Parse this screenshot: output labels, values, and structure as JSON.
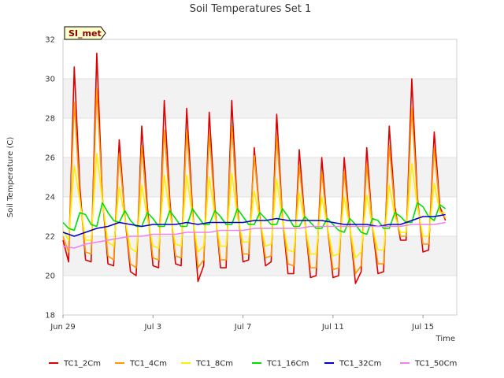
{
  "chart_data": {
    "type": "line",
    "title": "Soil Temperatures Set 1",
    "xlabel": "Time",
    "ylabel": "Soil Temperature (C)",
    "badge": "SI_met",
    "ylim": [
      18,
      32
    ],
    "xlim": [
      "Jun 29",
      "Jul 17 12:00"
    ],
    "yticks": [
      18,
      20,
      22,
      24,
      26,
      28,
      30,
      32
    ],
    "xticks": [
      {
        "label": "Jun 29",
        "day": 0
      },
      {
        "label": "Jul 3",
        "day": 4
      },
      {
        "label": "Jul 7",
        "day": 8
      },
      {
        "label": "Jul 11",
        "day": 12
      },
      {
        "label": "Jul 15",
        "day": 16
      }
    ],
    "grid": "horizontal bands",
    "legend_position": "bottom",
    "series": [
      {
        "name": "TC1_2Cm",
        "color": "#dd0000",
        "x": [
          0.0,
          0.25,
          0.5,
          0.75,
          1.0,
          1.25,
          1.5,
          1.75,
          2.0,
          2.25,
          2.5,
          2.75,
          3.0,
          3.25,
          3.5,
          3.75,
          4.0,
          4.25,
          4.5,
          4.75,
          5.0,
          5.25,
          5.5,
          5.75,
          6.0,
          6.25,
          6.5,
          6.75,
          7.0,
          7.25,
          7.5,
          7.75,
          8.0,
          8.25,
          8.5,
          8.75,
          9.0,
          9.25,
          9.5,
          9.75,
          10.0,
          10.25,
          10.5,
          10.75,
          11.0,
          11.25,
          11.5,
          11.75,
          12.0,
          12.25,
          12.5,
          12.75,
          13.0,
          13.25,
          13.5,
          13.75,
          14.0,
          14.25,
          14.5,
          14.75,
          15.0,
          15.25,
          15.5,
          15.75,
          16.0,
          16.25,
          16.5,
          16.75,
          17.0
        ],
        "y": [
          21.8,
          20.7,
          30.6,
          24.5,
          20.8,
          20.7,
          31.3,
          24.0,
          20.6,
          20.5,
          26.9,
          23.0,
          20.2,
          20.0,
          27.6,
          23.5,
          20.5,
          20.4,
          28.9,
          23.8,
          20.6,
          20.5,
          28.5,
          23.5,
          19.7,
          20.5,
          28.3,
          23.5,
          20.4,
          20.4,
          28.9,
          23.5,
          20.7,
          20.8,
          26.5,
          23.0,
          20.5,
          20.7,
          28.2,
          23.0,
          20.1,
          20.1,
          26.4,
          22.8,
          19.9,
          20.0,
          26.0,
          22.5,
          19.9,
          20.0,
          26.0,
          22.5,
          19.6,
          20.2,
          26.5,
          22.5,
          20.1,
          20.2,
          27.6,
          23.5,
          21.8,
          21.8,
          30.0,
          24.0,
          21.2,
          21.3,
          27.3,
          23.5,
          22.8
        ]
      },
      {
        "name": "TC1_4Cm",
        "color": "#ff9900",
        "x": [
          0.0,
          0.25,
          0.5,
          0.75,
          1.0,
          1.25,
          1.5,
          1.75,
          2.0,
          2.25,
          2.5,
          2.75,
          3.0,
          3.25,
          3.5,
          3.75,
          4.0,
          4.25,
          4.5,
          4.75,
          5.0,
          5.25,
          5.5,
          5.75,
          6.0,
          6.25,
          6.5,
          6.75,
          7.0,
          7.25,
          7.5,
          7.75,
          8.0,
          8.25,
          8.5,
          8.75,
          9.0,
          9.25,
          9.5,
          9.75,
          10.0,
          10.25,
          10.5,
          10.75,
          11.0,
          11.25,
          11.5,
          11.75,
          12.0,
          12.25,
          12.5,
          12.75,
          13.0,
          13.25,
          13.5,
          13.75,
          14.0,
          14.25,
          14.5,
          14.75,
          15.0,
          15.25,
          15.5,
          15.75,
          16.0,
          16.25,
          16.5,
          16.75,
          17.0
        ],
        "y": [
          22.0,
          21.2,
          28.8,
          24.0,
          21.2,
          21.1,
          29.5,
          24.0,
          21.0,
          20.8,
          26.2,
          23.0,
          20.6,
          20.4,
          26.6,
          23.2,
          20.9,
          20.8,
          27.4,
          23.5,
          21.0,
          20.9,
          27.4,
          23.3,
          20.4,
          20.8,
          27.2,
          23.3,
          20.8,
          20.8,
          27.6,
          23.3,
          21.1,
          21.1,
          26.1,
          22.9,
          20.9,
          21.0,
          27.1,
          23.0,
          20.6,
          20.5,
          25.6,
          22.7,
          20.4,
          20.4,
          25.3,
          22.5,
          20.3,
          20.4,
          25.3,
          22.4,
          20.1,
          20.5,
          25.7,
          22.5,
          20.6,
          20.6,
          26.6,
          23.3,
          22.0,
          22.0,
          28.5,
          23.8,
          21.6,
          21.6,
          26.5,
          23.3,
          22.9
        ]
      },
      {
        "name": "TC1_8Cm",
        "color": "#ffee00",
        "x": [
          0.0,
          0.25,
          0.5,
          0.75,
          1.0,
          1.25,
          1.5,
          1.75,
          2.0,
          2.25,
          2.5,
          2.75,
          3.0,
          3.25,
          3.5,
          3.75,
          4.0,
          4.25,
          4.5,
          4.75,
          5.0,
          5.25,
          5.5,
          5.75,
          6.0,
          6.25,
          6.5,
          6.75,
          7.0,
          7.25,
          7.5,
          7.75,
          8.0,
          8.25,
          8.5,
          8.75,
          9.0,
          9.25,
          9.5,
          9.75,
          10.0,
          10.25,
          10.5,
          10.75,
          11.0,
          11.25,
          11.5,
          11.75,
          12.0,
          12.25,
          12.5,
          12.75,
          13.0,
          13.25,
          13.5,
          13.75,
          14.0,
          14.25,
          14.5,
          14.75,
          15.0,
          15.25,
          15.5,
          15.75,
          16.0,
          16.25,
          16.5,
          16.75,
          17.0
        ],
        "y": [
          22.3,
          21.8,
          25.6,
          23.8,
          21.8,
          21.8,
          26.2,
          23.8,
          21.7,
          21.5,
          24.5,
          22.9,
          21.4,
          21.2,
          24.6,
          22.9,
          21.5,
          21.4,
          25.1,
          23.1,
          21.6,
          21.5,
          25.1,
          23.0,
          21.2,
          21.5,
          25.0,
          23.0,
          21.5,
          21.5,
          25.2,
          23.0,
          21.7,
          21.7,
          24.3,
          22.8,
          21.5,
          21.6,
          24.9,
          22.8,
          21.3,
          21.2,
          24.2,
          22.6,
          21.1,
          21.1,
          24.0,
          22.5,
          21.0,
          21.1,
          24.0,
          22.4,
          20.9,
          21.2,
          24.1,
          22.5,
          21.3,
          21.3,
          24.6,
          23.0,
          22.2,
          22.2,
          25.7,
          23.5,
          22.0,
          22.0,
          24.7,
          23.2,
          23.2
        ]
      },
      {
        "name": "TC1_16Cm",
        "color": "#00dd00",
        "x": [
          0.0,
          0.25,
          0.5,
          0.75,
          1.0,
          1.25,
          1.5,
          1.75,
          2.0,
          2.25,
          2.5,
          2.75,
          3.0,
          3.25,
          3.5,
          3.75,
          4.0,
          4.25,
          4.5,
          4.75,
          5.0,
          5.25,
          5.5,
          5.75,
          6.0,
          6.25,
          6.5,
          6.75,
          7.0,
          7.25,
          7.5,
          7.75,
          8.0,
          8.25,
          8.5,
          8.75,
          9.0,
          9.25,
          9.5,
          9.75,
          10.0,
          10.25,
          10.5,
          10.75,
          11.0,
          11.25,
          11.5,
          11.75,
          12.0,
          12.25,
          12.5,
          12.75,
          13.0,
          13.25,
          13.5,
          13.75,
          14.0,
          14.25,
          14.5,
          14.75,
          15.0,
          15.25,
          15.5,
          15.75,
          16.0,
          16.25,
          16.5,
          16.75,
          17.0
        ],
        "y": [
          22.7,
          22.4,
          22.3,
          23.2,
          23.1,
          22.6,
          22.5,
          23.7,
          23.2,
          22.8,
          22.7,
          23.3,
          22.8,
          22.5,
          22.5,
          23.2,
          22.9,
          22.5,
          22.5,
          23.3,
          22.9,
          22.5,
          22.5,
          23.4,
          23.0,
          22.6,
          22.6,
          23.3,
          23.0,
          22.6,
          22.6,
          23.4,
          23.0,
          22.6,
          22.6,
          23.2,
          22.9,
          22.6,
          22.6,
          23.4,
          23.0,
          22.5,
          22.5,
          23.0,
          22.7,
          22.4,
          22.4,
          22.9,
          22.6,
          22.3,
          22.2,
          22.9,
          22.6,
          22.2,
          22.1,
          22.9,
          22.8,
          22.4,
          22.4,
          23.2,
          23.0,
          22.7,
          22.7,
          23.7,
          23.5,
          23.0,
          22.8,
          23.6,
          23.4
        ]
      },
      {
        "name": "TC1_32Cm",
        "color": "#0000cc",
        "x": [
          0.0,
          0.5,
          1.0,
          1.5,
          2.0,
          2.5,
          3.0,
          3.5,
          4.0,
          4.5,
          5.0,
          5.5,
          6.0,
          6.5,
          7.0,
          7.5,
          8.0,
          8.5,
          9.0,
          9.5,
          10.0,
          10.5,
          11.0,
          11.5,
          12.0,
          12.5,
          13.0,
          13.5,
          14.0,
          14.5,
          15.0,
          15.5,
          16.0,
          16.5,
          17.0
        ],
        "y": [
          22.2,
          22.0,
          22.2,
          22.4,
          22.5,
          22.7,
          22.6,
          22.5,
          22.6,
          22.6,
          22.6,
          22.7,
          22.6,
          22.7,
          22.7,
          22.7,
          22.7,
          22.8,
          22.8,
          22.9,
          22.8,
          22.8,
          22.8,
          22.8,
          22.7,
          22.6,
          22.6,
          22.6,
          22.5,
          22.6,
          22.6,
          22.8,
          23.0,
          23.0,
          23.1
        ]
      },
      {
        "name": "TC1_50Cm",
        "color": "#ee82ee",
        "x": [
          0.0,
          0.5,
          1.0,
          1.5,
          2.0,
          2.5,
          3.0,
          3.5,
          4.0,
          4.5,
          5.0,
          5.5,
          6.0,
          6.5,
          7.0,
          7.5,
          8.0,
          8.5,
          9.0,
          9.5,
          10.0,
          10.5,
          11.0,
          11.5,
          12.0,
          12.5,
          13.0,
          13.5,
          14.0,
          14.5,
          15.0,
          15.5,
          16.0,
          16.5,
          17.0
        ],
        "y": [
          21.5,
          21.4,
          21.6,
          21.7,
          21.8,
          21.9,
          22.0,
          22.0,
          22.1,
          22.1,
          22.1,
          22.2,
          22.2,
          22.2,
          22.3,
          22.3,
          22.3,
          22.4,
          22.4,
          22.4,
          22.4,
          22.4,
          22.5,
          22.5,
          22.5,
          22.5,
          22.5,
          22.5,
          22.5,
          22.5,
          22.5,
          22.6,
          22.6,
          22.6,
          22.7
        ]
      }
    ]
  }
}
